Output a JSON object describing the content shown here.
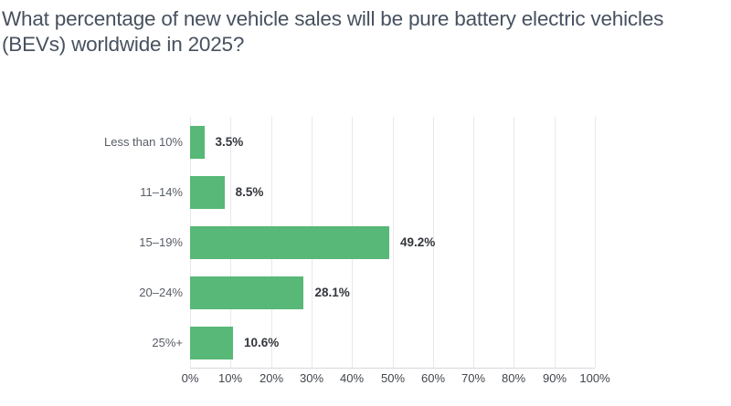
{
  "title": {
    "line1": "What percentage of new vehicle sales will be pure battery electric vehicles",
    "line2": "(BEVs) worldwide in 2025?"
  },
  "colors": {
    "bar": "#57B877",
    "gridline": "#E9E9EB",
    "axis_line": "#D8D9DB",
    "title_text": "#47515F",
    "category_text": "#585D66",
    "value_text": "#33363C",
    "tick_text": "#41454D",
    "background": "#FFFFFF"
  },
  "chart_data": {
    "type": "bar",
    "orientation": "horizontal",
    "title": "What percentage of new vehicle sales will be pure battery electric vehicles (BEVs) worldwide in 2025?",
    "categories": [
      "Less than 10%",
      "11–14%",
      "15–19%",
      "20–24%",
      "25%+"
    ],
    "values": [
      3.5,
      8.5,
      49.2,
      28.1,
      10.6
    ],
    "value_labels": [
      "3.5%",
      "8.5%",
      "49.2%",
      "28.1%",
      "10.6%"
    ],
    "x_ticks": [
      "0%",
      "10%",
      "20%",
      "30%",
      "40%",
      "50%",
      "60%",
      "70%",
      "80%",
      "90%",
      "100%"
    ],
    "xlim": [
      0,
      100
    ],
    "grid": true,
    "legend": "none",
    "xlabel": "",
    "ylabel": ""
  }
}
